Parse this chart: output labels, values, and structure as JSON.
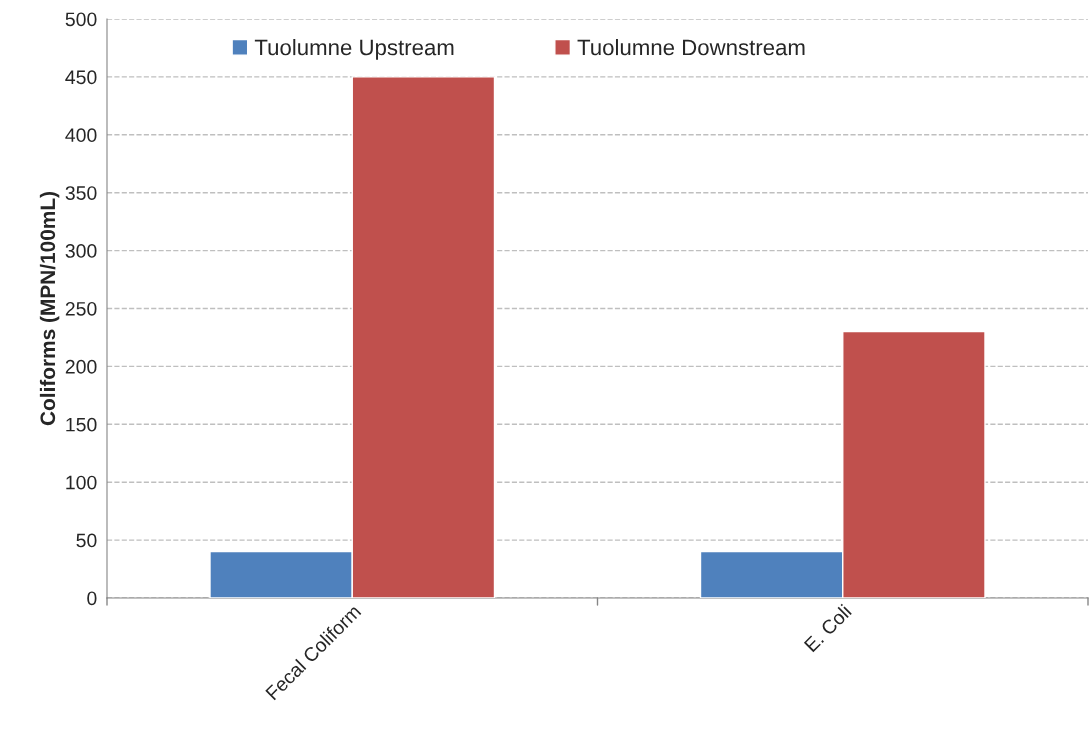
{
  "chart_data": {
    "type": "bar",
    "ylabel": "Coliforms (MPN/100mL)",
    "categories": [
      "Fecal Coliform",
      "E. Coli"
    ],
    "series": [
      {
        "name": "Tuolumne Upstream",
        "color": "#4f81bd",
        "values": [
          40,
          40
        ]
      },
      {
        "name": "Tuolumne Downstream",
        "color": "#c0504d",
        "values": [
          450,
          230
        ]
      }
    ],
    "ylim": [
      0,
      500
    ],
    "yticks": [
      0,
      50,
      100,
      150,
      200,
      250,
      300,
      350,
      400,
      450,
      500
    ],
    "grid": "y",
    "legend": "top"
  }
}
